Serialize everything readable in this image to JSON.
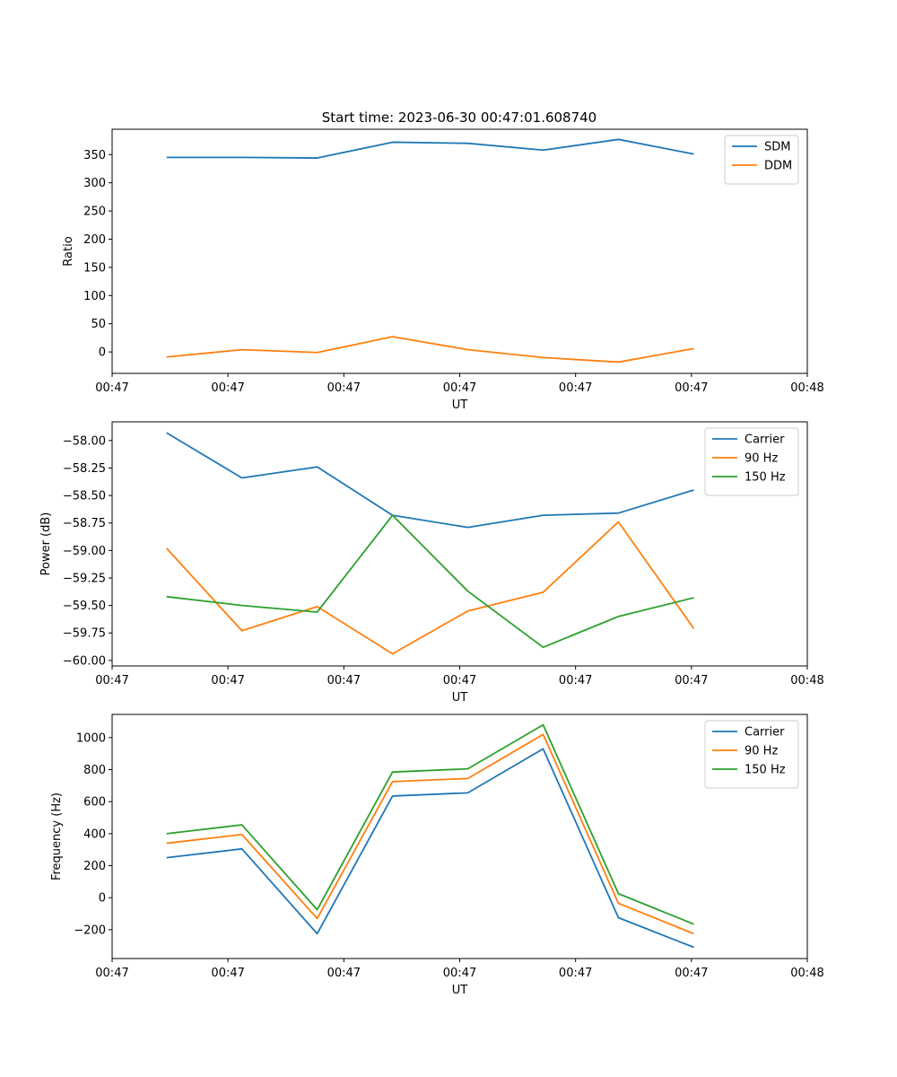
{
  "chart_data": [
    {
      "type": "line",
      "title": "Start time: 2023-06-30 00:47:01.608740",
      "xlabel": "UT",
      "ylabel": "Ratio",
      "x_tick_labels": [
        "00:47",
        "00:47",
        "00:47",
        "00:47",
        "00:47",
        "00:47",
        "00:48"
      ],
      "xlim": [
        0,
        6
      ],
      "x": [
        0.47,
        1.12,
        1.77,
        2.42,
        3.07,
        3.72,
        4.37,
        5.02
      ],
      "ylim": [
        -38,
        395
      ],
      "y_ticks": [
        0,
        50,
        100,
        150,
        200,
        250,
        300,
        350
      ],
      "legend_position": "upper-right",
      "series": [
        {
          "name": "SDM",
          "color": "#1f77b4",
          "values": [
            345,
            345,
            344,
            372,
            370,
            358,
            377,
            351
          ]
        },
        {
          "name": "DDM",
          "color": "#ff7f0e",
          "values": [
            -9,
            4,
            -1,
            27,
            4,
            -10,
            -18,
            6
          ]
        }
      ]
    },
    {
      "type": "line",
      "title": "",
      "xlabel": "UT",
      "ylabel": "Power (dB)",
      "x_tick_labels": [
        "00:47",
        "00:47",
        "00:47",
        "00:47",
        "00:47",
        "00:47",
        "00:48"
      ],
      "xlim": [
        0,
        6
      ],
      "x": [
        0.47,
        1.12,
        1.77,
        2.42,
        3.07,
        3.72,
        4.37,
        5.02
      ],
      "ylim": [
        -60.05,
        -57.83
      ],
      "y_ticks": [
        -60.0,
        -59.75,
        -59.5,
        -59.25,
        -59.0,
        -58.75,
        -58.5,
        -58.25,
        -58.0
      ],
      "y_tick_labels": [
        "−60.00",
        "−59.75",
        "−59.50",
        "−59.25",
        "−59.00",
        "−58.75",
        "−58.50",
        "−58.25",
        "−58.00"
      ],
      "legend_position": "upper-right",
      "series": [
        {
          "name": "Carrier",
          "color": "#1f77b4",
          "values": [
            -57.93,
            -58.34,
            -58.24,
            -58.68,
            -58.79,
            -58.68,
            -58.66,
            -58.45
          ]
        },
        {
          "name": "90 Hz",
          "color": "#ff7f0e",
          "values": [
            -58.98,
            -59.73,
            -59.51,
            -59.94,
            -59.55,
            -59.38,
            -58.74,
            -59.71
          ]
        },
        {
          "name": "150 Hz",
          "color": "#2ca02c",
          "values": [
            -59.42,
            -59.5,
            -59.56,
            -58.68,
            -59.37,
            -59.88,
            -59.6,
            -59.43
          ]
        }
      ]
    },
    {
      "type": "line",
      "title": "",
      "xlabel": "UT",
      "ylabel": "Frequency (Hz)",
      "x_tick_labels": [
        "00:47",
        "00:47",
        "00:47",
        "00:47",
        "00:47",
        "00:47",
        "00:48"
      ],
      "xlim": [
        0,
        6
      ],
      "x": [
        0.47,
        1.12,
        1.77,
        2.42,
        3.07,
        3.72,
        4.37,
        5.02
      ],
      "ylim": [
        -380,
        1145
      ],
      "y_ticks": [
        -200,
        0,
        200,
        400,
        600,
        800,
        1000
      ],
      "y_tick_labels": [
        "−200",
        "0",
        "200",
        "400",
        "600",
        "800",
        "1000"
      ],
      "legend_position": "upper-right",
      "series": [
        {
          "name": "Carrier",
          "color": "#1f77b4",
          "values": [
            250,
            305,
            -225,
            635,
            655,
            930,
            -125,
            -310
          ]
        },
        {
          "name": "90 Hz",
          "color": "#ff7f0e",
          "values": [
            340,
            395,
            -130,
            725,
            745,
            1020,
            -35,
            -225
          ]
        },
        {
          "name": "150 Hz",
          "color": "#2ca02c",
          "values": [
            400,
            455,
            -75,
            785,
            805,
            1080,
            25,
            -165
          ]
        }
      ]
    }
  ]
}
